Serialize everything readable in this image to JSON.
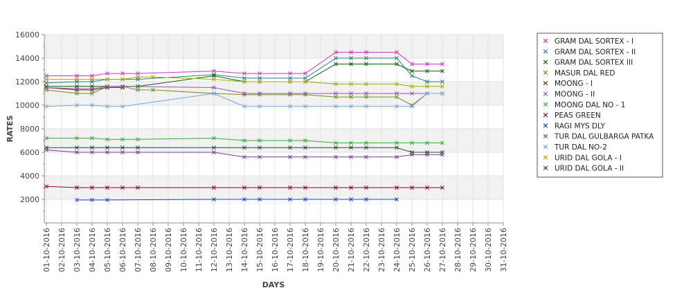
{
  "chart_data": {
    "type": "line",
    "xlabel": "DAYS",
    "ylabel": "RATES",
    "ylim": [
      0,
      16000
    ],
    "yticks": [
      2000,
      4000,
      6000,
      8000,
      10000,
      12000,
      14000,
      16000
    ],
    "grid": true,
    "legend_position": "right",
    "categories": [
      "01-10-2016",
      "02-10-2016",
      "03-10-2016",
      "04-10-2016",
      "05-10-2016",
      "06-10-2016",
      "07-10-2016",
      "08-10-2016",
      "09-10-2016",
      "10-10-2016",
      "11-10-2016",
      "12-10-2016",
      "13-10-2016",
      "14-10-2016",
      "15-10-2016",
      "16-10-2016",
      "17-10-2016",
      "18-10-2016",
      "19-10-2016",
      "20-10-2016",
      "21-10-2016",
      "22-10-2016",
      "23-10-2016",
      "24-10-2016",
      "25-10-2016",
      "26-10-2016",
      "27-10-2016",
      "28-10-2016",
      "29-10-2016",
      "30-10-2016",
      "31-10-2016"
    ],
    "series": [
      {
        "name": "GRAM DAL SORTEX  - I",
        "color": "#cc33cc",
        "values": [
          12500,
          null,
          12500,
          12500,
          12700,
          12700,
          12700,
          null,
          null,
          null,
          null,
          12900,
          null,
          12700,
          12700,
          null,
          12700,
          12700,
          null,
          14500,
          14500,
          14500,
          null,
          14500,
          13500,
          13500,
          13500,
          null,
          null,
          null,
          null
        ]
      },
      {
        "name": "GRAM DAL SORTEX - II",
        "color": "#2e7d7d",
        "values": [
          11900,
          null,
          12000,
          12000,
          12200,
          12200,
          12200,
          null,
          null,
          null,
          null,
          12600,
          null,
          12300,
          12300,
          null,
          12300,
          12300,
          null,
          14000,
          14000,
          14000,
          null,
          14000,
          12500,
          12000,
          12000,
          null,
          null,
          null,
          null
        ]
      },
      {
        "name": "GRAM DAL SORTEX III",
        "color": "#006400",
        "values": [
          11600,
          null,
          11600,
          11600,
          11600,
          11600,
          11600,
          null,
          null,
          null,
          null,
          12500,
          null,
          12000,
          12000,
          null,
          12000,
          12000,
          null,
          13500,
          13500,
          13500,
          null,
          13500,
          12900,
          12900,
          12900,
          null,
          null,
          null,
          null
        ]
      },
      {
        "name": "MASUR DAL RED",
        "color": "#6b8e23",
        "values": [
          11300,
          null,
          11000,
          11000,
          11600,
          11600,
          11300,
          11300,
          null,
          null,
          null,
          11000,
          null,
          10900,
          10900,
          null,
          10900,
          10900,
          null,
          10700,
          10700,
          10700,
          null,
          10700,
          10000,
          11000,
          11000,
          null,
          null,
          null,
          null
        ]
      },
      {
        "name": "MOONG - I",
        "color": "#4d3319",
        "values": [
          11500,
          null,
          11300,
          11300,
          11500,
          11500,
          null,
          null,
          null,
          null,
          null,
          null,
          null,
          null,
          null,
          null,
          null,
          null,
          null,
          null,
          null,
          null,
          null,
          null,
          null,
          null,
          null,
          null,
          null,
          null,
          null
        ]
      },
      {
        "name": "MOONG - II",
        "color": "#a050b0",
        "values": [
          11500,
          null,
          11400,
          11400,
          11600,
          11600,
          null,
          null,
          null,
          null,
          null,
          11500,
          null,
          11000,
          11000,
          null,
          11000,
          11000,
          null,
          11000,
          11000,
          11000,
          null,
          11000,
          11000,
          11000,
          11000,
          null,
          null,
          null,
          null
        ]
      },
      {
        "name": "MOONG DAL NO - 1",
        "color": "#33aa33",
        "values": [
          7200,
          null,
          7200,
          7200,
          7100,
          7100,
          7100,
          null,
          null,
          null,
          null,
          7200,
          null,
          7000,
          7000,
          null,
          7000,
          7000,
          null,
          6800,
          6800,
          6800,
          null,
          6800,
          6800,
          6800,
          6800,
          null,
          null,
          null,
          null
        ]
      },
      {
        "name": "PEAS GREEN",
        "color": "#8b0033",
        "values": [
          3100,
          null,
          3000,
          3000,
          3000,
          3000,
          3000,
          null,
          null,
          null,
          null,
          3000,
          null,
          3000,
          3000,
          null,
          3000,
          3000,
          null,
          3000,
          3000,
          3000,
          null,
          3000,
          3000,
          3000,
          3000,
          null,
          null,
          null,
          null
        ]
      },
      {
        "name": "RAGI MYS DLY",
        "color": "#1f3fbf",
        "values": [
          null,
          null,
          1950,
          1950,
          1950,
          null,
          null,
          null,
          null,
          null,
          null,
          2000,
          null,
          2000,
          2000,
          null,
          2000,
          2000,
          null,
          2000,
          2000,
          2000,
          null,
          2000,
          null,
          null,
          null,
          null,
          null,
          null,
          null
        ]
      },
      {
        "name": "TUR DAL GULBARGA PATKA",
        "color": "#7a3a99",
        "values": [
          6200,
          null,
          6000,
          6000,
          6000,
          6000,
          6000,
          null,
          null,
          null,
          null,
          6000,
          null,
          5600,
          5600,
          null,
          5600,
          5600,
          null,
          5600,
          5600,
          5600,
          null,
          5600,
          5800,
          5800,
          5800,
          null,
          null,
          null,
          null
        ]
      },
      {
        "name": "TUR DAL NO-2",
        "color": "#6fa8dc",
        "values": [
          9900,
          null,
          10000,
          10000,
          9900,
          9900,
          null,
          null,
          null,
          null,
          null,
          11000,
          null,
          9900,
          9900,
          null,
          9900,
          9900,
          null,
          9900,
          9900,
          9900,
          null,
          9900,
          9900,
          11000,
          11000,
          null,
          null,
          null,
          null
        ]
      },
      {
        "name": "URID DAL GOLA - I",
        "color": "#a6a600",
        "values": [
          12200,
          null,
          12200,
          12200,
          12200,
          12200,
          12400,
          12400,
          null,
          null,
          null,
          12200,
          null,
          12000,
          12000,
          null,
          12000,
          12000,
          null,
          11800,
          11800,
          11800,
          null,
          11800,
          11600,
          11600,
          11600,
          null,
          null,
          null,
          null
        ]
      },
      {
        "name": "URID DAL GOLA - II",
        "color": "#1e4d2b",
        "values": [
          6400,
          null,
          6400,
          6400,
          6400,
          6400,
          6400,
          null,
          null,
          null,
          null,
          6400,
          null,
          6400,
          6400,
          null,
          6400,
          6400,
          null,
          6400,
          6400,
          6400,
          null,
          6400,
          6000,
          6000,
          6000,
          null,
          null,
          null,
          null
        ]
      }
    ]
  }
}
